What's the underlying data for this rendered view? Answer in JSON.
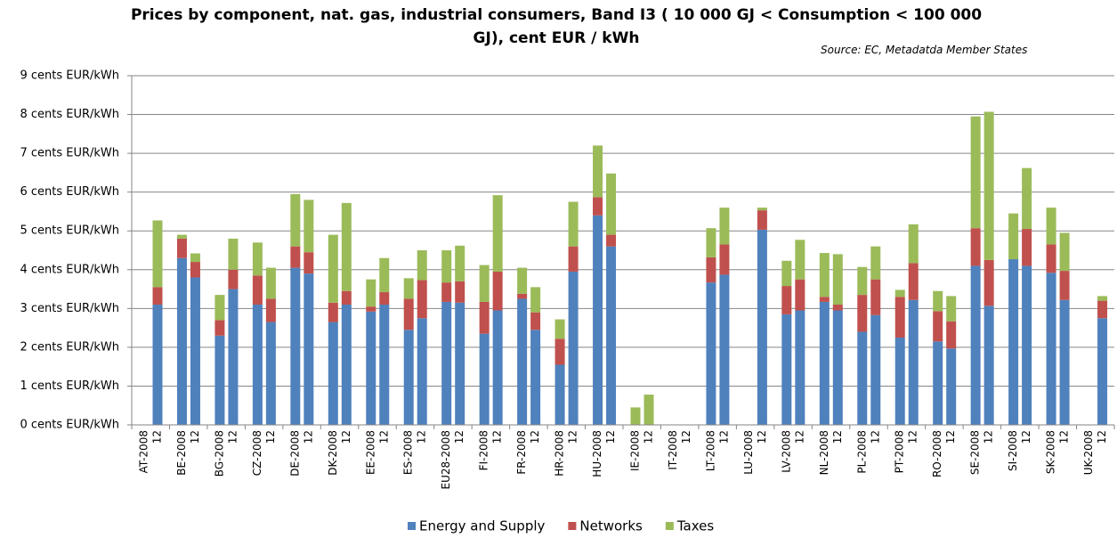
{
  "chart_data": {
    "type": "stacked_bar",
    "title": "Prices by component, nat. gas, industrial consumers, Band I3 (  10 000 GJ < Consumption < 100 000 GJ), cent EUR / kWh",
    "source": "Source:  EC, Metadatda  Member States",
    "categories": [
      "AT-2008",
      "12",
      "BE-2008",
      "12",
      "BG-2008",
      "12",
      "CZ-2008",
      "12",
      "DE-2008",
      "12",
      "DK-2008",
      "12",
      "EE-2008",
      "12",
      "ES-2008",
      "12",
      "EU28-2008",
      "12",
      "FI-2008",
      "12",
      "FR-2008",
      "12",
      "HR-2008",
      "12",
      "HU-2008",
      "12",
      "IE-2008",
      "12",
      "IT-2008",
      "12",
      "LT-2008",
      "12",
      "LU-2008",
      "12",
      "LV-2008",
      "12",
      "NL-2008",
      "12",
      "PL-2008",
      "12",
      "PT-2008",
      "12",
      "RO-2008",
      "12",
      "SE-2008",
      "12",
      "SI-2008",
      "12",
      "SK-2008",
      "12",
      "UK-2008",
      "12"
    ],
    "series": [
      {
        "name": "Energy and Supply",
        "color": "#4f81bd",
        "values": [
          null,
          3.1,
          4.3,
          3.8,
          2.3,
          3.5,
          3.1,
          2.65,
          4.05,
          3.9,
          2.65,
          3.1,
          2.92,
          3.1,
          2.45,
          2.75,
          3.17,
          3.15,
          2.35,
          2.95,
          3.25,
          2.45,
          1.55,
          3.95,
          5.4,
          4.6,
          0,
          0,
          null,
          null,
          3.67,
          3.87,
          null,
          5.03,
          2.85,
          2.95,
          3.17,
          2.95,
          2.4,
          2.83,
          2.25,
          3.22,
          2.15,
          1.97,
          4.1,
          3.07,
          4.27,
          4.1,
          3.92,
          3.22,
          null,
          2.75
        ]
      },
      {
        "name": "Networks",
        "color": "#c0504d",
        "values": [
          null,
          0.45,
          0.5,
          0.4,
          0.4,
          0.5,
          0.75,
          0.6,
          0.55,
          0.55,
          0.5,
          0.35,
          0.13,
          0.32,
          0.8,
          0.98,
          0.5,
          0.55,
          0.82,
          1.0,
          0.13,
          0.45,
          0.67,
          0.65,
          0.47,
          0.3,
          0,
          0,
          null,
          null,
          0.65,
          0.78,
          null,
          0.5,
          0.73,
          0.8,
          0.13,
          0.15,
          0.95,
          0.92,
          1.05,
          0.95,
          0.78,
          0.7,
          0.97,
          1.18,
          0,
          0.95,
          0.73,
          0.75,
          null,
          0.45
        ]
      },
      {
        "name": "Taxes",
        "color": "#9bbb59",
        "values": [
          null,
          1.72,
          0.1,
          0.22,
          0.65,
          0.8,
          0.85,
          0.8,
          1.35,
          1.35,
          1.75,
          2.27,
          0.7,
          0.88,
          0.53,
          0.77,
          0.83,
          0.92,
          0.95,
          1.97,
          0.67,
          0.65,
          0.5,
          1.15,
          1.33,
          1.58,
          0.45,
          0.78,
          null,
          null,
          0.75,
          0.95,
          null,
          0.07,
          0.65,
          1.02,
          1.13,
          1.3,
          0.72,
          0.85,
          0.18,
          1.0,
          0.52,
          0.65,
          2.88,
          3.82,
          1.18,
          1.57,
          0.95,
          0.98,
          null,
          0.12
        ]
      }
    ],
    "ylim": [
      0,
      9
    ],
    "yticks": [
      {
        "value": 0,
        "label": "0 cents EUR/kWh"
      },
      {
        "value": 1,
        "label": "1 cents EUR/kWh"
      },
      {
        "value": 2,
        "label": "2 cents EUR/kWh"
      },
      {
        "value": 3,
        "label": "3 cents EUR/kWh"
      },
      {
        "value": 4,
        "label": "4 cents EUR/kWh"
      },
      {
        "value": 5,
        "label": "5 cents EUR/kWh"
      },
      {
        "value": 6,
        "label": "6 cents EUR/kWh"
      },
      {
        "value": 7,
        "label": "7 cents EUR/kWh"
      },
      {
        "value": 8,
        "label": "8 cents EUR/kWh"
      },
      {
        "value": 9,
        "label": "9 cents EUR/kWh"
      }
    ],
    "grid": true,
    "legend": "bottom"
  }
}
